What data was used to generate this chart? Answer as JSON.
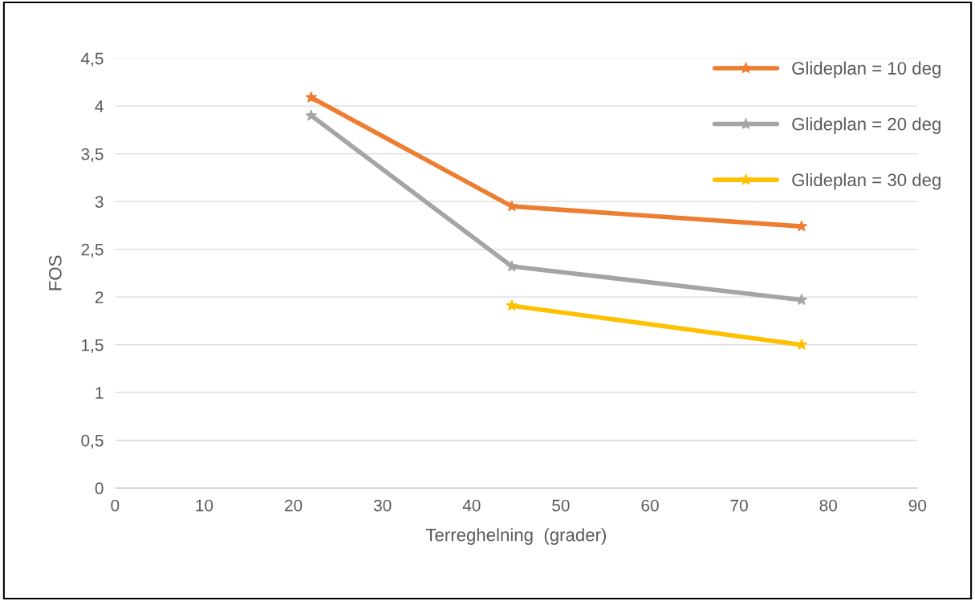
{
  "chart_data": {
    "type": "line",
    "xlabel": "Terreghelning  (grader)",
    "ylabel": "FOS",
    "series": [
      {
        "name": "Glideplan = 10 deg",
        "color": "#ed7d31",
        "x": [
          22,
          44.5,
          77
        ],
        "values": [
          4.09,
          2.95,
          2.74
        ]
      },
      {
        "name": "Glideplan = 20 deg",
        "color": "#a5a5a5",
        "x": [
          22,
          44.5,
          77
        ],
        "values": [
          3.9,
          2.32,
          1.97
        ]
      },
      {
        "name": "Glideplan = 30 deg",
        "color": "#ffc000",
        "x": [
          44.5,
          77
        ],
        "values": [
          1.91,
          1.5
        ]
      }
    ],
    "xlim": [
      0,
      90
    ],
    "xticks": [
      0,
      10,
      20,
      30,
      40,
      50,
      60,
      70,
      80,
      90
    ],
    "ylim": [
      0,
      4.5
    ],
    "yticks": [
      {
        "value": 0,
        "label": "0"
      },
      {
        "value": 0.5,
        "label": "0,5"
      },
      {
        "value": 1,
        "label": "1"
      },
      {
        "value": 1.5,
        "label": "1,5"
      },
      {
        "value": 2,
        "label": "2"
      },
      {
        "value": 2.5,
        "label": "2,5"
      },
      {
        "value": 3,
        "label": "3"
      },
      {
        "value": 3.5,
        "label": "3,5"
      },
      {
        "value": 4,
        "label": "4"
      },
      {
        "value": 4.5,
        "label": "4,5"
      }
    ],
    "grid": "y",
    "legend": "top right",
    "marker": "star",
    "line_style": "solid"
  }
}
